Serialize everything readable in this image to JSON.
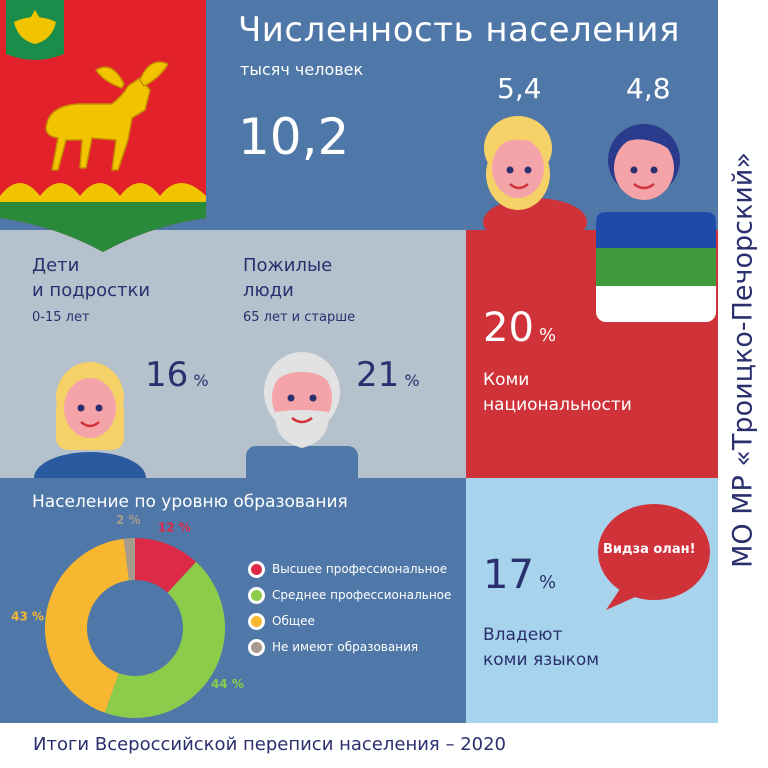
{
  "header": {
    "title": "Численность населения",
    "unit": "тысяч человек",
    "total": "10,2",
    "female": "5,4",
    "male": "4,8"
  },
  "children": {
    "title_line1": "Дети",
    "title_line2": "и подростки",
    "subtitle": "0-15 лет",
    "percent": "16",
    "percent_sign": "%"
  },
  "elderly": {
    "title_line1": "Пожилые",
    "title_line2": "люди",
    "subtitle": "65 лет и старше",
    "percent": "21",
    "percent_sign": "%"
  },
  "komi_nationality": {
    "percent": "20",
    "percent_sign": "%",
    "label_line1": "Коми",
    "label_line2": "национальности"
  },
  "komi_language": {
    "percent": "17",
    "percent_sign": "%",
    "label_line1": "Владеют",
    "label_line2": "коми языком",
    "bubble": "Видза олан!"
  },
  "side_title": "МО МР «Троицко-Печорский»",
  "footer": "Итоги Всероссийской переписи населения – 2020",
  "colors": {
    "blue_panel": "#4f78a8",
    "gray_panel": "#b5c1cc",
    "red_panel": "#d0323a",
    "light_blue_panel": "#a8d3ec",
    "navy_text": "#2a2f6e"
  },
  "chart_data": {
    "type": "pie",
    "title": "Население по уровню образования",
    "categories": [
      "Высшее профессиональное",
      "Среднее профессиональное",
      "Общее",
      "Не имеют образования"
    ],
    "values": [
      12,
      44,
      43,
      2
    ],
    "value_labels": [
      "12 %",
      "44 %",
      "43 %",
      "2 %"
    ],
    "colors": [
      "#dd2a47",
      "#8dcc4a",
      "#f7b731",
      "#a69b8c"
    ],
    "donut": true,
    "legend": "right"
  }
}
